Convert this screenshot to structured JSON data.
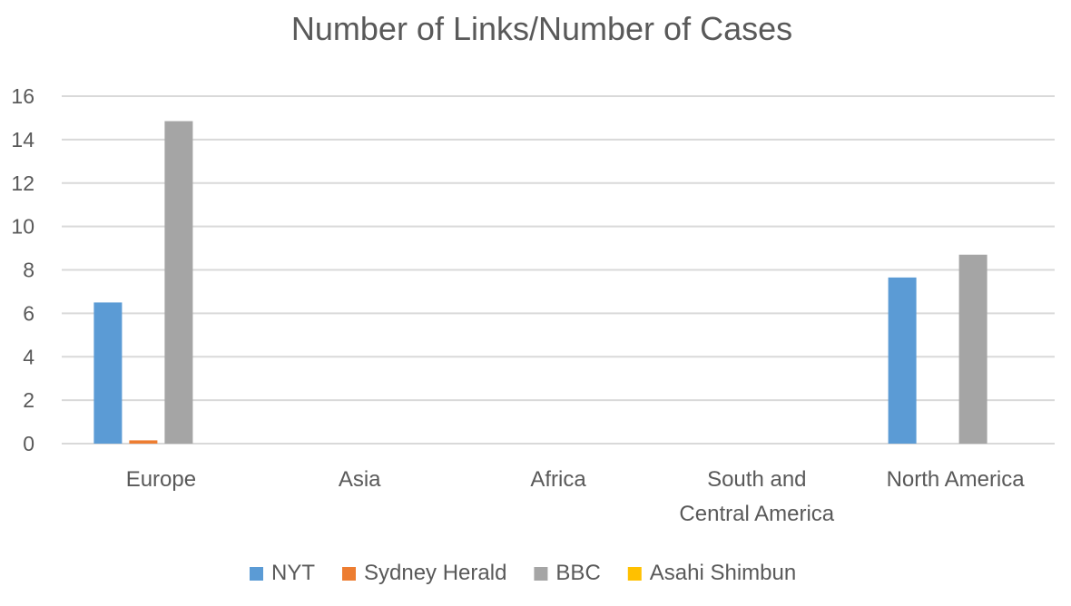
{
  "chart_data": {
    "type": "bar",
    "title": "Number of Links/Number of Cases",
    "xlabel": "",
    "ylabel": "",
    "categories": [
      [
        "Europe"
      ],
      [
        "Asia"
      ],
      [
        "Africa"
      ],
      [
        "South and",
        "Central America"
      ],
      [
        "North America"
      ]
    ],
    "series": [
      {
        "name": "NYT",
        "color": "#5b9bd5",
        "values": [
          6.5,
          0,
          0,
          0,
          7.65
        ]
      },
      {
        "name": "Sydney Herald",
        "color": "#ed7d31",
        "values": [
          0.15,
          0,
          0,
          0,
          0
        ]
      },
      {
        "name": "BBC",
        "color": "#a5a5a5",
        "values": [
          14.85,
          0,
          0,
          0,
          8.7
        ]
      },
      {
        "name": "Asahi Shimbun",
        "color": "#ffc000",
        "values": [
          0,
          0,
          0,
          0,
          0
        ]
      }
    ],
    "ylim": [
      0,
      16
    ],
    "yticks": [
      0,
      2,
      4,
      6,
      8,
      10,
      12,
      14,
      16
    ],
    "grid": true,
    "legend_position": "bottom"
  }
}
